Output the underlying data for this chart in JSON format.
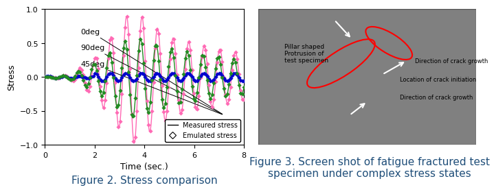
{
  "title_left": "Figure 2. Stress comparison",
  "title_right": "Figure 3. Screen shot of fatigue fractured test\nspecimen under complex stress states",
  "xlabel": "Time (sec.)",
  "ylabel": "Stress",
  "xlim": [
    0,
    8
  ],
  "ylim": [
    -1.0,
    1.0
  ],
  "yticks": [
    -1.0,
    -0.5,
    0.0,
    0.5,
    1.0
  ],
  "xticks": [
    0,
    2,
    4,
    6,
    8
  ],
  "color_0deg": "#FF69B4",
  "color_90deg": "#0000CD",
  "color_45deg": "#228B22",
  "legend_measured": "Measured stress",
  "legend_emulated": "Emulated stress",
  "label_0deg": "0deg",
  "label_90deg": "90deg",
  "label_45deg": "45deg",
  "background_color": "#ffffff",
  "figure_caption_color": "#1F4E79",
  "figure_caption_fontsize": 11
}
